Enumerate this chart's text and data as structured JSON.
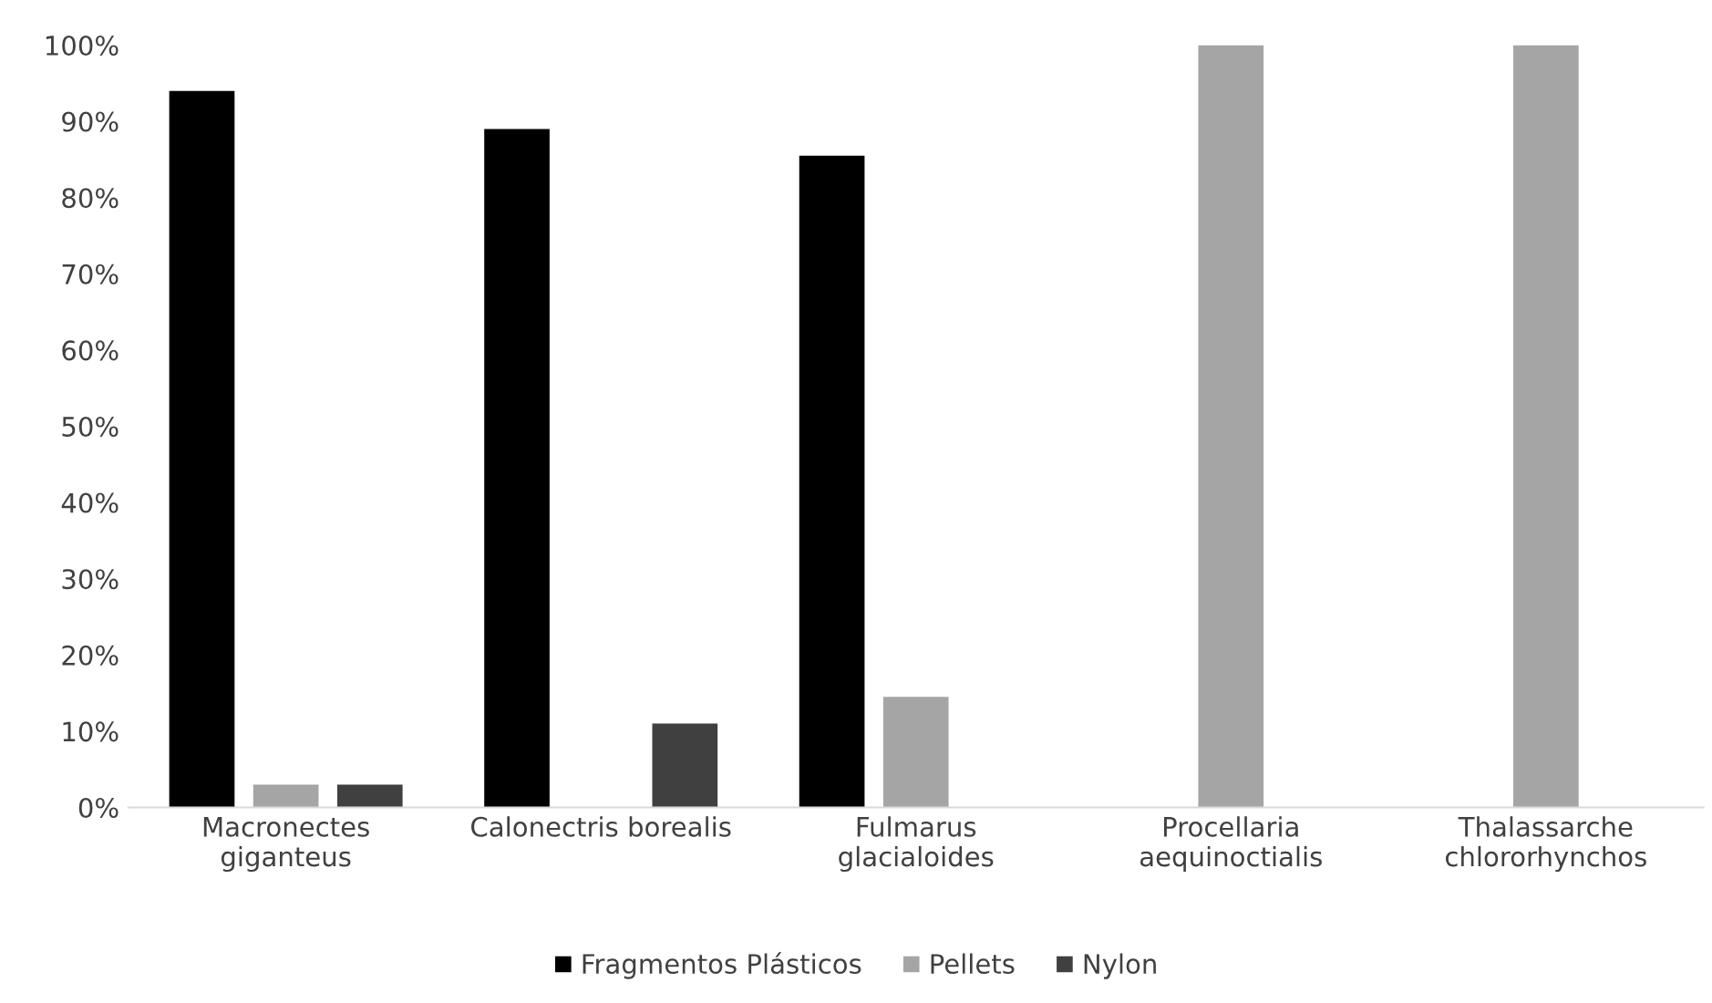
{
  "chart_data": {
    "type": "bar",
    "categories": [
      "Macronectes\ngiganteus",
      "Calonectris borealis",
      "Fulmarus\nglacialoides",
      "Procellaria\naequinoctialis",
      "Thalassarche\nchlororhynchos"
    ],
    "series": [
      {
        "name": "Fragmentos Plásticos",
        "color": "#000000",
        "values": [
          94,
          89,
          85.5,
          null,
          null
        ]
      },
      {
        "name": "Pellets",
        "color": "#a5a5a5",
        "values": [
          3,
          null,
          14.5,
          100,
          100
        ]
      },
      {
        "name": "Nylon",
        "color": "#404040",
        "values": [
          3,
          11,
          null,
          null,
          null
        ]
      }
    ],
    "ylim": [
      0,
      100
    ],
    "yticks": [
      {
        "value": 0,
        "label": "0%"
      },
      {
        "value": 10,
        "label": "10%"
      },
      {
        "value": 20,
        "label": "20%"
      },
      {
        "value": 30,
        "label": "30%"
      },
      {
        "value": 40,
        "label": "40%"
      },
      {
        "value": 50,
        "label": "50%"
      },
      {
        "value": 60,
        "label": "60%"
      },
      {
        "value": 70,
        "label": "70%"
      },
      {
        "value": 80,
        "label": "80%"
      },
      {
        "value": 90,
        "label": "90%"
      },
      {
        "value": 100,
        "label": "100%"
      }
    ],
    "legend": "bottom",
    "grid": false
  }
}
